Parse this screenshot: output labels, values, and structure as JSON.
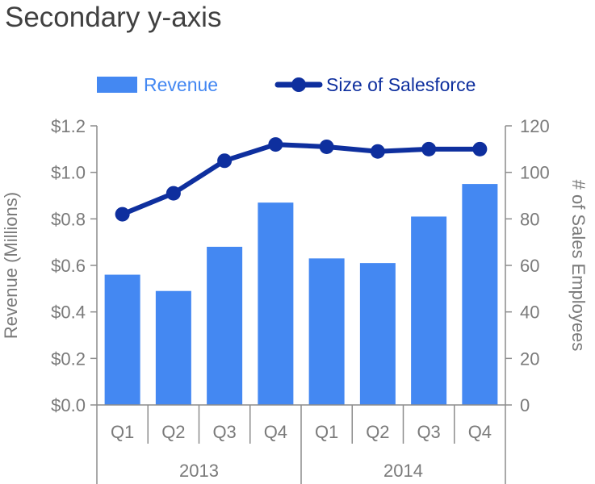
{
  "title": "Secondary y-axis",
  "colors": {
    "bar": "#4488f2",
    "line": "#0e2f9e",
    "axis": "#8c8c8c",
    "text": "#7a7a7a"
  },
  "chart_data": {
    "type": "bar",
    "categories": [
      "Q1",
      "Q2",
      "Q3",
      "Q4",
      "Q1",
      "Q2",
      "Q3",
      "Q4"
    ],
    "groups": [
      {
        "label": "2013",
        "count": 4
      },
      {
        "label": "2014",
        "count": 4
      }
    ],
    "series": [
      {
        "name": "Revenue",
        "type": "bar",
        "axis": "left",
        "values": [
          0.56,
          0.49,
          0.68,
          0.87,
          0.63,
          0.61,
          0.81,
          0.95
        ]
      },
      {
        "name": "Size of Salesforce",
        "type": "line",
        "axis": "right",
        "values": [
          82,
          91,
          105,
          112,
          111,
          109,
          110,
          110
        ]
      }
    ],
    "ylabel": "Revenue (Millions)",
    "y2label": "# of Sales Employees",
    "ylim": [
      0,
      1.2
    ],
    "y2lim": [
      0,
      120
    ],
    "yticks": [
      "$0.0",
      "$0.2",
      "$0.4",
      "$0.6",
      "$0.8",
      "$1.0",
      "$1.2"
    ],
    "y2ticks": [
      "0",
      "20",
      "40",
      "60",
      "80",
      "100",
      "120"
    ],
    "legend_position": "top",
    "grid": false
  }
}
